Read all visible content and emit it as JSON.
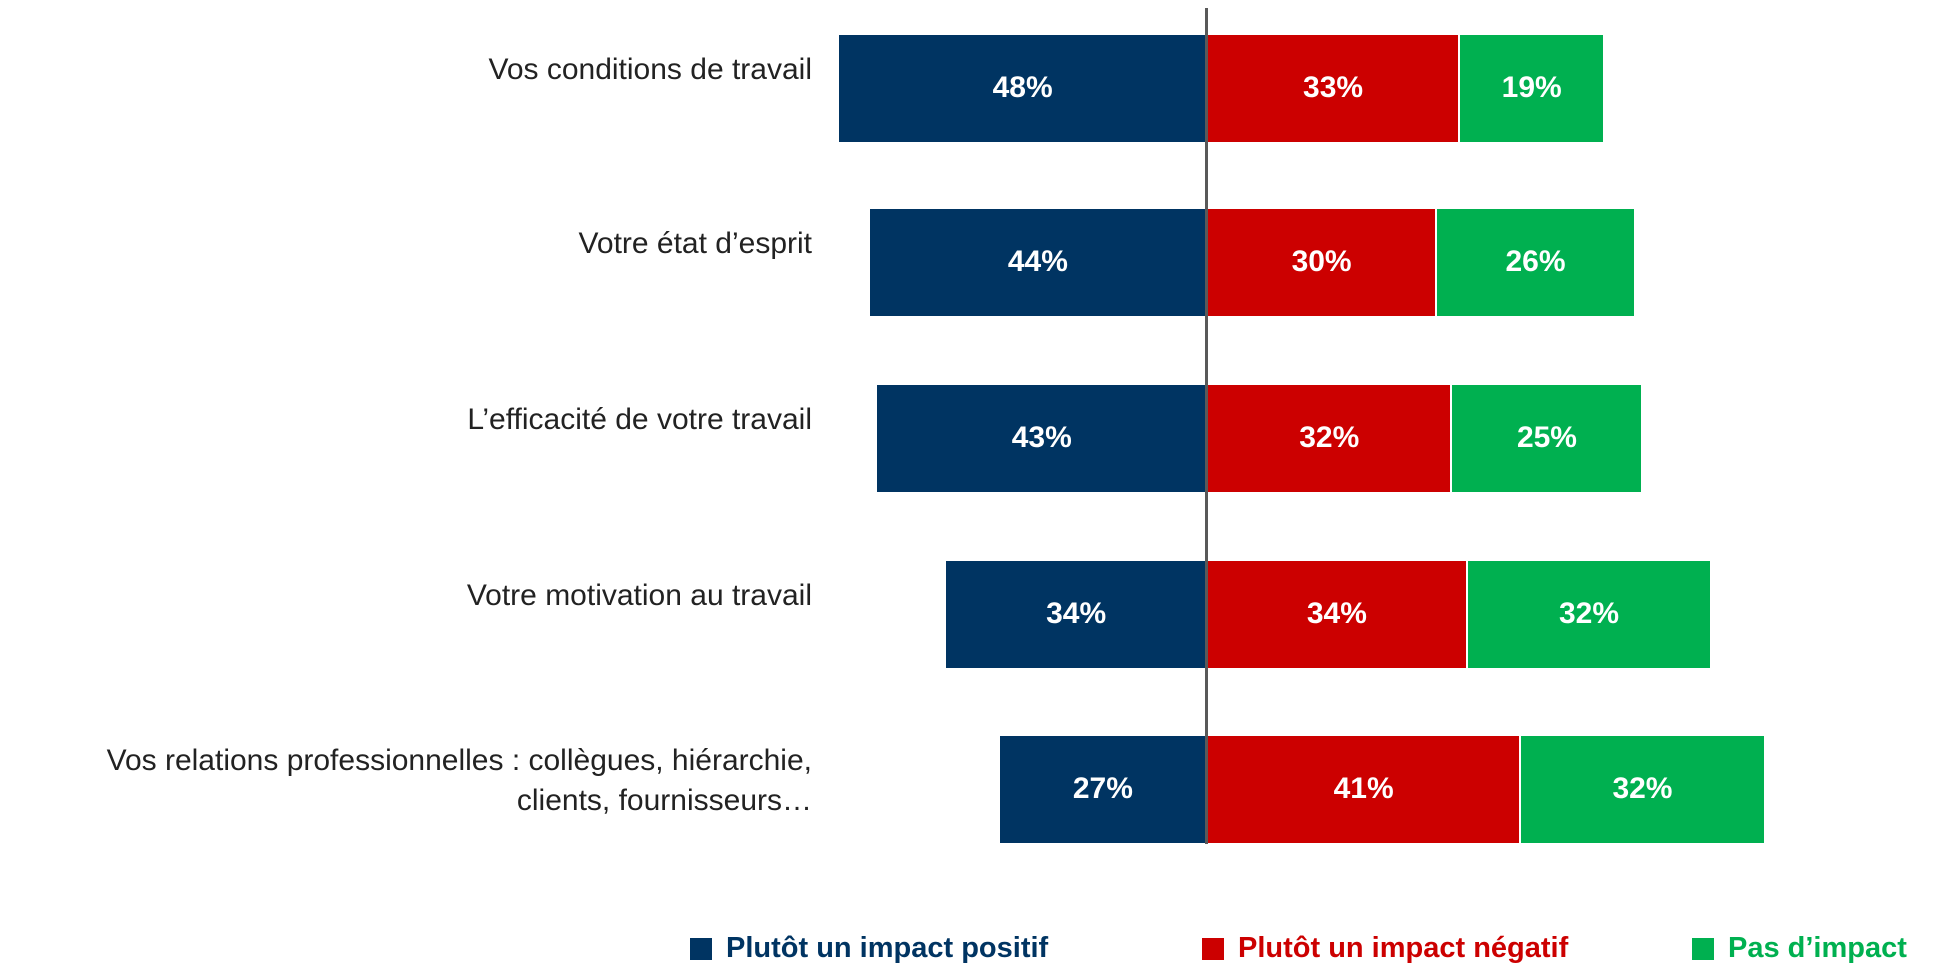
{
  "chart_data": {
    "type": "diverging_bar",
    "categories": [
      "Vos conditions de travail",
      "Votre état d’esprit",
      "L’efficacité de votre travail",
      "Votre motivation au travail",
      "Vos relations professionnelles : collègues, hiérarchie, clients, fournisseurs…"
    ],
    "series": [
      {
        "name": "Plutôt un impact positif",
        "color": "#003462",
        "values": [
          48,
          44,
          43,
          34,
          27
        ],
        "value_labels": [
          "48%",
          "44%",
          "43%",
          "34%",
          "27%"
        ]
      },
      {
        "name": "Plutôt un impact négatif",
        "color": "#cc0000",
        "values": [
          33,
          30,
          32,
          34,
          41
        ],
        "value_labels": [
          "33%",
          "30%",
          "32%",
          "34%",
          "41%"
        ]
      },
      {
        "name": "Pas d’impact",
        "color": "#00b050",
        "values": [
          19,
          26,
          25,
          32,
          32
        ],
        "value_labels": [
          "19%",
          "26%",
          "25%",
          "32%",
          "32%"
        ]
      }
    ],
    "legend": "bottom"
  }
}
